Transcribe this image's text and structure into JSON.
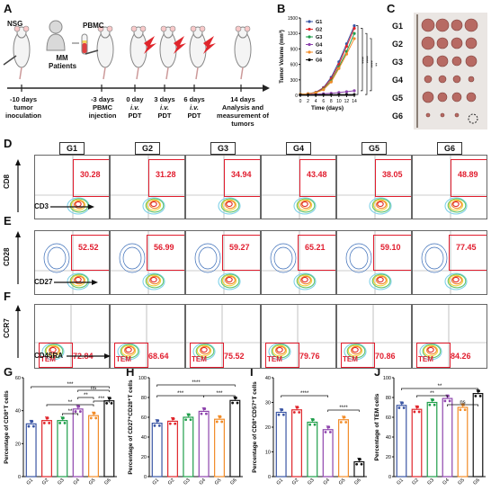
{
  "panels": {
    "A": "A",
    "B": "B",
    "C": "C",
    "D": "D",
    "E": "E",
    "F": "F",
    "G": "G",
    "H": "H",
    "I": "I",
    "J": "J"
  },
  "schematic": {
    "mouse_label": "NSG",
    "patients_label_line1": "MM",
    "patients_label_line2": "Patients",
    "pbmc_label": "PBMC",
    "steps": [
      {
        "line1": "-10 days",
        "line2": "tumor",
        "line3": "inoculation"
      },
      {
        "line1": "-3 days",
        "line2": "PBMC",
        "line3": "injection"
      },
      {
        "line1": "0 day",
        "line2": "i.v.",
        "line3": "PDT"
      },
      {
        "line1": "3 days",
        "line2": "i.v.",
        "line3": "PDT"
      },
      {
        "line1": "6 days",
        "line2": "i.v.",
        "line3": "PDT"
      },
      {
        "line1": "14 days",
        "line2": "Analysis and",
        "line3": "measurement of",
        "line4": "tumors"
      }
    ]
  },
  "groups": [
    "G1",
    "G2",
    "G3",
    "G4",
    "G5",
    "G6"
  ],
  "flow": {
    "D": {
      "ylabel": "CD8",
      "xlabel": "CD3",
      "values": [
        "30.28",
        "31.28",
        "34.94",
        "43.48",
        "38.05",
        "48.89"
      ]
    },
    "E": {
      "ylabel": "CD28",
      "xlabel": "CD27",
      "values": [
        "52.52",
        "56.99",
        "59.27",
        "65.21",
        "59.10",
        "77.45"
      ]
    },
    "F": {
      "ylabel": "CCR7",
      "xlabel": "CD45RA",
      "gate_label": "TEM",
      "values": [
        "72.84",
        "68.64",
        "75.52",
        "79.76",
        "70.86",
        "84.26"
      ]
    }
  },
  "colors": {
    "G1": "#3a55a4",
    "G2": "#e0262c",
    "G3": "#1f9e4a",
    "G4": "#8e44ad",
    "G5": "#f28c28",
    "G6": "#111111",
    "gate": "#e11d2e"
  },
  "chart_data": [
    {
      "panel": "B",
      "type": "line",
      "xlabel": "Time (days)",
      "ylabel": "Tumor Volume (mm³)",
      "x": [
        0,
        2,
        4,
        6,
        8,
        10,
        12,
        14
      ],
      "xlim": [
        0,
        14
      ],
      "ylim": [
        0,
        1500
      ],
      "yticks": [
        0,
        300,
        600,
        900,
        1200,
        1500
      ],
      "significance": [
        "****",
        "****",
        "****",
        "**"
      ],
      "series": [
        {
          "name": "G1",
          "values": [
            20,
            30,
            60,
            150,
            350,
            650,
            1000,
            1350
          ]
        },
        {
          "name": "G2",
          "values": [
            20,
            30,
            55,
            140,
            320,
            600,
            950,
            1300
          ]
        },
        {
          "name": "G3",
          "values": [
            20,
            28,
            50,
            120,
            280,
            550,
            850,
            1200
          ]
        },
        {
          "name": "G4",
          "values": [
            15,
            20,
            25,
            30,
            40,
            55,
            70,
            90
          ]
        },
        {
          "name": "G5",
          "values": [
            20,
            28,
            50,
            110,
            260,
            520,
            800,
            1100
          ]
        },
        {
          "name": "G6",
          "values": [
            10,
            10,
            10,
            12,
            12,
            15,
            15,
            15
          ]
        }
      ]
    },
    {
      "panel": "G",
      "type": "bar",
      "ylabel": "Percentage of CD8⁺T cells",
      "categories": [
        "G1",
        "G2",
        "G3",
        "G4",
        "G5",
        "G6"
      ],
      "values": [
        32,
        34,
        34,
        41,
        37,
        46
      ],
      "ylim": [
        0,
        60
      ],
      "yticks": [
        0,
        20,
        40,
        60
      ],
      "significance": [
        {
          "from": "G1",
          "to": "G6",
          "label": "***"
        },
        {
          "from": "G2",
          "to": "G5",
          "label": "**"
        },
        {
          "from": "G3",
          "to": "G4",
          "label": "**"
        },
        {
          "from": "G4",
          "to": "G5",
          "label": "**"
        },
        {
          "from": "G5",
          "to": "G6",
          "label": "***"
        },
        {
          "from": "G4",
          "to": "G6",
          "label": "ns"
        }
      ]
    },
    {
      "panel": "H",
      "type": "bar",
      "ylabel": "Percentage of CD27⁺CD28⁺T cells",
      "categories": [
        "G1",
        "G2",
        "G3",
        "G4",
        "G5",
        "G6"
      ],
      "values": [
        54,
        56,
        60,
        66,
        58,
        77
      ],
      "ylim": [
        0,
        100
      ],
      "yticks": [
        0,
        20,
        40,
        60,
        80,
        100
      ],
      "significance": [
        {
          "from": "G1",
          "to": "G6",
          "label": "****"
        },
        {
          "from": "G1",
          "to": "G4",
          "label": "***"
        },
        {
          "from": "G4",
          "to": "G6",
          "label": "***"
        }
      ]
    },
    {
      "panel": "I",
      "type": "bar",
      "ylabel": "Percentage of CD8⁺CD57⁺T cells",
      "categories": [
        "G1",
        "G2",
        "G3",
        "G4",
        "G5",
        "G6"
      ],
      "values": [
        26,
        27,
        22,
        19,
        23,
        6
      ],
      "ylim": [
        0,
        40
      ],
      "yticks": [
        0,
        10,
        20,
        30,
        40
      ],
      "significance": [
        {
          "from": "G1",
          "to": "G4",
          "label": "****"
        },
        {
          "from": "G4",
          "to": "G6",
          "label": "****"
        }
      ]
    },
    {
      "panel": "J",
      "type": "bar",
      "ylabel": "Percentage of TEM cells",
      "categories": [
        "G1",
        "G2",
        "G3",
        "G4",
        "G5",
        "G6"
      ],
      "values": [
        72,
        68,
        75,
        79,
        70,
        84
      ],
      "ylim": [
        0,
        100
      ],
      "yticks": [
        0,
        20,
        40,
        60,
        80,
        100
      ],
      "significance": [
        {
          "from": "G1",
          "to": "G6",
          "label": "**"
        },
        {
          "from": "G2",
          "to": "G4",
          "label": "**"
        },
        {
          "from": "G4",
          "to": "G6",
          "label": "ns"
        }
      ]
    }
  ]
}
